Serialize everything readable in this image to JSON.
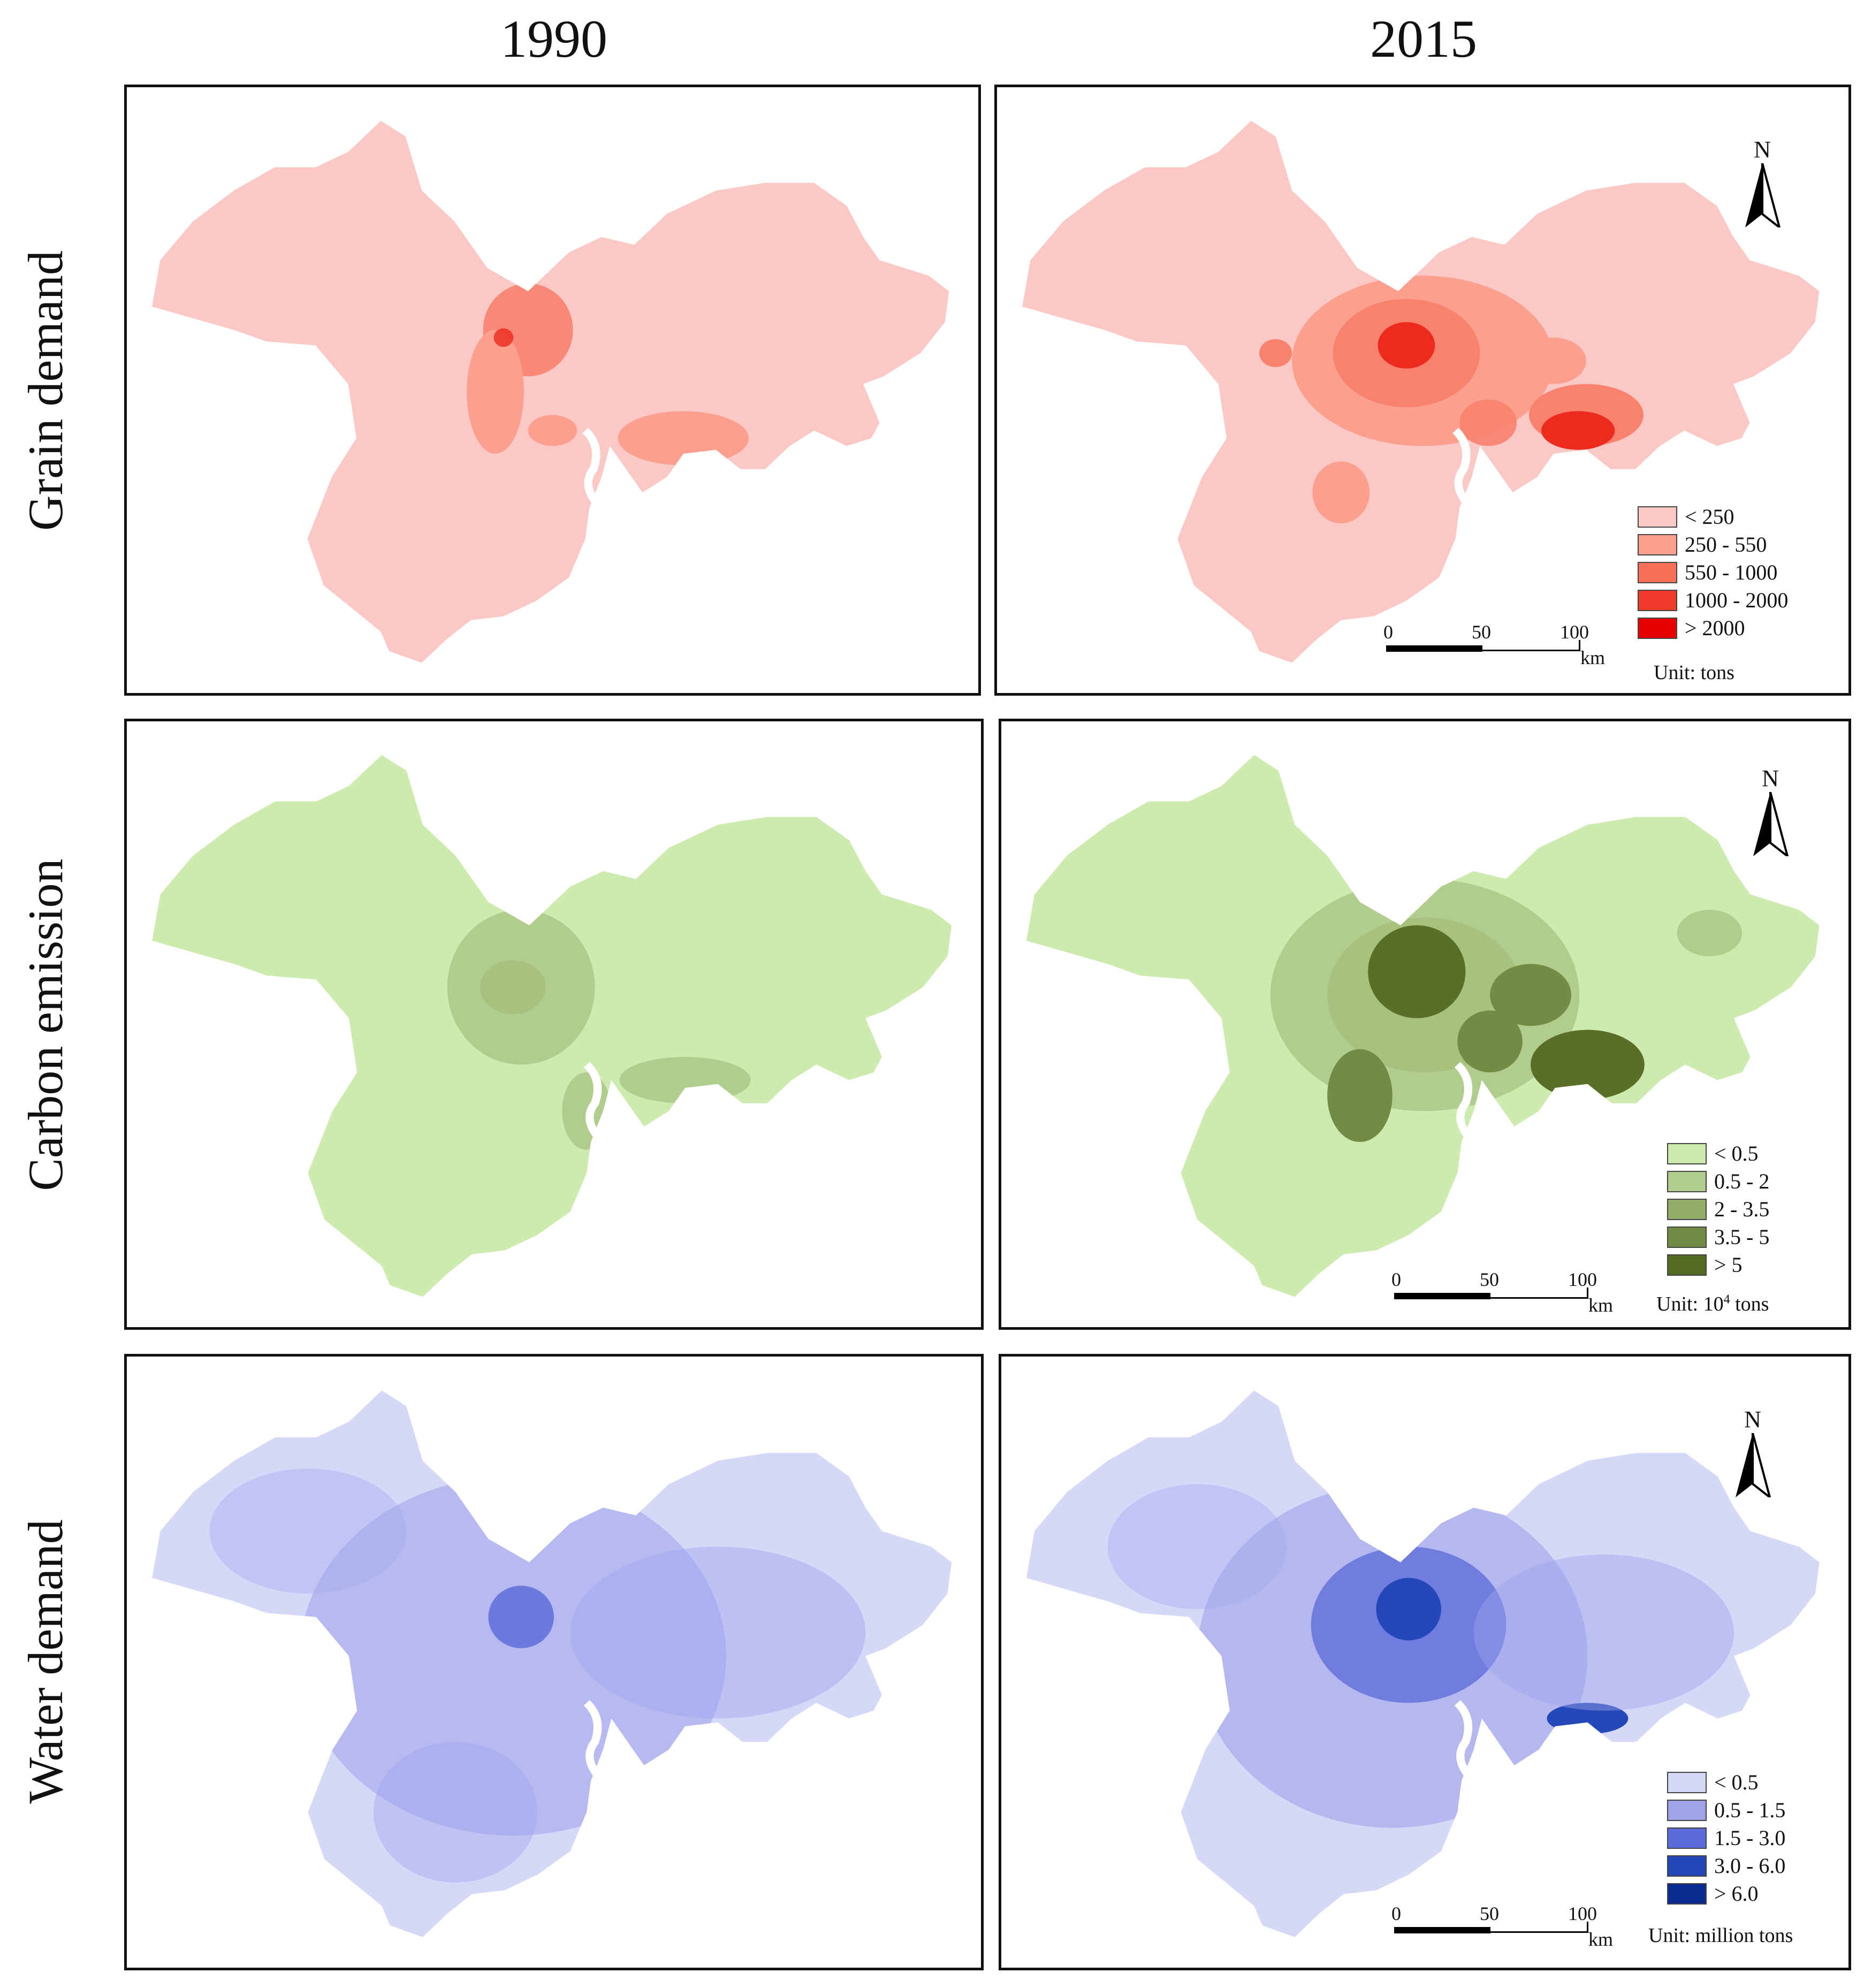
{
  "columns": [
    "1990",
    "2015"
  ],
  "rows": [
    "Grain demand",
    "Carbon emission",
    "Water demand"
  ],
  "scale_bar": {
    "labels": [
      "0",
      "50",
      "100"
    ],
    "unit": "km"
  },
  "north_label": "N",
  "legends": {
    "grain": {
      "unit": "Unit: tons",
      "classes": [
        {
          "label": "< 250",
          "color": "#fcc8c6"
        },
        {
          "label": "250 - 550",
          "color": "#fba08f"
        },
        {
          "label": "550 - 1000",
          "color": "#f8705a"
        },
        {
          "label": "1000 - 2000",
          "color": "#f03a2c"
        },
        {
          "label": "> 2000",
          "color": "#e60000"
        }
      ]
    },
    "carbon": {
      "unit_prefix": "Unit: 10",
      "unit_sup": "4",
      "unit_suffix": " tons",
      "classes": [
        {
          "label": "< 0.5",
          "color": "#cdeaaf"
        },
        {
          "label": "0.5 - 2",
          "color": "#b0cd8d"
        },
        {
          "label": "2 - 3.5",
          "color": "#92ad67"
        },
        {
          "label": "3.5 - 5",
          "color": "#728b45"
        },
        {
          "label": "> 5",
          "color": "#556b24"
        }
      ]
    },
    "water": {
      "unit": "Unit: million tons",
      "classes": [
        {
          "label": "< 0.5",
          "color": "#d6d8f8"
        },
        {
          "label": "0.5 - 1.5",
          "color": "#9ea3ea"
        },
        {
          "label": "1.5 - 3.0",
          "color": "#5a6ad8"
        },
        {
          "label": "3.0 - 6.0",
          "color": "#2448b8"
        },
        {
          "label": "> 6.0",
          "color": "#0a2c90"
        }
      ]
    }
  },
  "colors": {
    "grain_base": "#fcc8c6",
    "grain_mid": "#f8826e",
    "grain_high": "#ec2a1e",
    "carbon_base": "#cdeaaf",
    "carbon_mid": "#a6c27e",
    "carbon_high": "#5a6e28",
    "water_base": "#d6d8f8",
    "water_mid": "#9ea3ea",
    "water_high": "#3a55c8"
  }
}
